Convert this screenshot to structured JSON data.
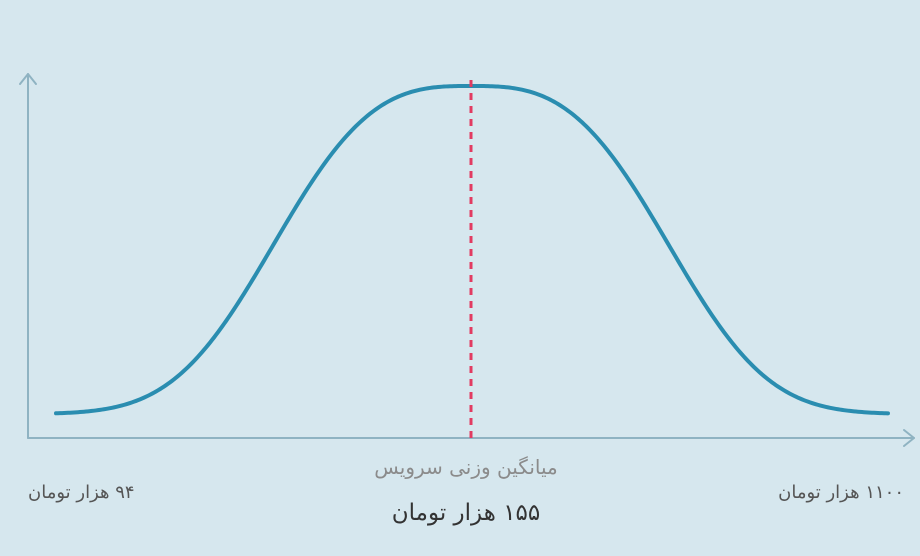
{
  "chart_data": {
    "type": "line",
    "shape": "bell-curve",
    "axes": {
      "y_axis_arrow": true,
      "x_axis_arrow": true,
      "grid": false
    },
    "annotations": {
      "mean_caption": "میانگین وزنی سرویس",
      "mean_value": "۱۵۵ هزار تومان",
      "left_label": "۹۴ هزار تومان",
      "right_label": "۱۱۰۰ هزار تومان"
    },
    "colors": {
      "background": "#d6e7ee",
      "axis": "#8fb3c2",
      "curve": "#2a8db0",
      "mean_line": "#e23b61"
    }
  }
}
